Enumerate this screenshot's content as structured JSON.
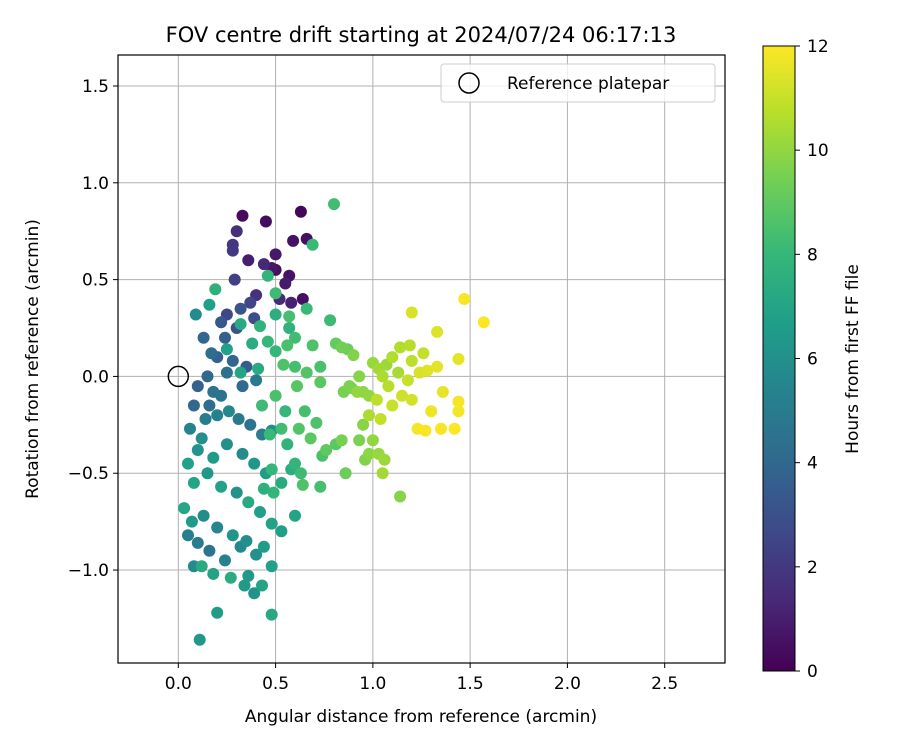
{
  "chart_data": {
    "type": "scatter",
    "title": "FOV centre drift starting at 2024/07/24 06:17:13",
    "xlabel": "Angular distance from reference (arcmin)",
    "ylabel": "Rotation from reference (arcmin)",
    "xlim": [
      -0.31,
      2.81
    ],
    "ylim": [
      -1.48,
      1.66
    ],
    "xticks": [
      0.0,
      0.5,
      1.0,
      1.5,
      2.0,
      2.5
    ],
    "xtick_labels": [
      "0.0",
      "0.5",
      "1.0",
      "1.5",
      "2.0",
      "2.5"
    ],
    "yticks": [
      -1.0,
      -0.5,
      0.0,
      0.5,
      1.0,
      1.5
    ],
    "ytick_labels": [
      "−1.0",
      "−0.5",
      "0.0",
      "0.5",
      "1.0",
      "1.5"
    ],
    "grid": true,
    "legend": {
      "label": "Reference platepar",
      "placement": "top-right"
    },
    "reference_point": {
      "x": 0.0,
      "y": 0.0
    },
    "colorbar": {
      "label": "Hours from first FF file",
      "range": [
        0,
        12
      ],
      "ticks": [
        0,
        2,
        4,
        6,
        8,
        10,
        12
      ],
      "tick_labels": [
        "0",
        "2",
        "4",
        "6",
        "8",
        "10",
        "12"
      ],
      "colormap": "viridis"
    },
    "colormap_stops": [
      "#440154",
      "#482878",
      "#3e4989",
      "#31688e",
      "#26828e",
      "#1f9e89",
      "#35b779",
      "#6ece58",
      "#b5de2b",
      "#fde725"
    ],
    "series": [
      {
        "points": [
          [
            0.33,
            0.83,
            0.3
          ],
          [
            0.45,
            0.8,
            0.4
          ],
          [
            0.63,
            0.85,
            0.2
          ],
          [
            0.66,
            0.71,
            0.5
          ],
          [
            0.59,
            0.7,
            0.6
          ],
          [
            0.5,
            0.63,
            0.8
          ],
          [
            0.3,
            0.75,
            1.6
          ],
          [
            0.28,
            0.68,
            1.9
          ],
          [
            0.28,
            0.65,
            2.0
          ],
          [
            0.36,
            0.6,
            1.0
          ],
          [
            0.44,
            0.58,
            1.3
          ],
          [
            0.48,
            0.56,
            0.7
          ],
          [
            0.5,
            0.55,
            0.4
          ],
          [
            0.57,
            0.52,
            0.6
          ],
          [
            0.55,
            0.48,
            0.9
          ],
          [
            0.64,
            0.4,
            0.5
          ],
          [
            0.58,
            0.38,
            1.1
          ],
          [
            0.52,
            0.4,
            1.4
          ],
          [
            0.4,
            0.42,
            1.7
          ],
          [
            0.29,
            0.5,
            2.3
          ],
          [
            0.37,
            0.38,
            2.5
          ],
          [
            0.32,
            0.35,
            3.1
          ],
          [
            0.39,
            0.3,
            2.8
          ],
          [
            0.25,
            0.32,
            2.6
          ],
          [
            0.22,
            0.28,
            3.3
          ],
          [
            0.24,
            0.2,
            3.6
          ],
          [
            0.3,
            0.25,
            3.0
          ],
          [
            0.13,
            0.2,
            3.9
          ],
          [
            0.17,
            0.12,
            4.2
          ],
          [
            0.2,
            0.1,
            3.7
          ],
          [
            0.28,
            0.08,
            3.9
          ],
          [
            0.25,
            0.02,
            4.4
          ],
          [
            0.35,
            0.05,
            3.5
          ],
          [
            0.4,
            -0.02,
            4.8
          ],
          [
            0.33,
            -0.05,
            4.1
          ],
          [
            0.22,
            -0.1,
            4.6
          ],
          [
            0.16,
            -0.15,
            4.3
          ],
          [
            0.14,
            -0.22,
            5.0
          ],
          [
            0.2,
            -0.2,
            5.3
          ],
          [
            0.26,
            -0.18,
            5.6
          ],
          [
            0.31,
            -0.22,
            4.9
          ],
          [
            0.37,
            -0.25,
            4.5
          ],
          [
            0.43,
            -0.3,
            5.1
          ],
          [
            0.48,
            -0.28,
            5.8
          ],
          [
            0.06,
            -0.27,
            5.4
          ],
          [
            0.12,
            -0.32,
            5.9
          ],
          [
            0.1,
            -0.38,
            6.2
          ],
          [
            0.18,
            -0.42,
            6.5
          ],
          [
            0.25,
            -0.35,
            6.0
          ],
          [
            0.33,
            -0.4,
            5.7
          ],
          [
            0.39,
            -0.45,
            6.3
          ],
          [
            0.45,
            -0.5,
            6.6
          ],
          [
            0.05,
            -0.45,
            6.8
          ],
          [
            0.08,
            -0.55,
            7.0
          ],
          [
            0.15,
            -0.5,
            6.4
          ],
          [
            0.22,
            -0.57,
            6.9
          ],
          [
            0.3,
            -0.6,
            6.1
          ],
          [
            0.36,
            -0.65,
            7.2
          ],
          [
            0.42,
            -0.7,
            6.7
          ],
          [
            0.03,
            -0.68,
            7.1
          ],
          [
            0.07,
            -0.75,
            6.5
          ],
          [
            0.13,
            -0.72,
            5.8
          ],
          [
            0.2,
            -0.78,
            5.5
          ],
          [
            0.28,
            -0.82,
            6.2
          ],
          [
            0.35,
            -0.85,
            5.9
          ],
          [
            0.44,
            -0.88,
            6.6
          ],
          [
            0.05,
            -0.82,
            5.2
          ],
          [
            0.1,
            -0.86,
            5.0
          ],
          [
            0.16,
            -0.9,
            4.7
          ],
          [
            0.24,
            -0.95,
            5.3
          ],
          [
            0.32,
            -0.88,
            5.6
          ],
          [
            0.4,
            -0.92,
            6.0
          ],
          [
            0.48,
            -0.98,
            6.8
          ],
          [
            0.12,
            -0.98,
            7.3
          ],
          [
            0.18,
            -1.02,
            6.9
          ],
          [
            0.27,
            -1.04,
            7.4
          ],
          [
            0.36,
            -1.03,
            6.4
          ],
          [
            0.43,
            -1.08,
            7.0
          ],
          [
            0.34,
            -1.08,
            6.5
          ],
          [
            0.08,
            -0.98,
            5.7
          ],
          [
            0.2,
            -1.22,
            6.6
          ],
          [
            0.48,
            -1.23,
            7.2
          ],
          [
            0.11,
            -1.36,
            6.3
          ],
          [
            0.39,
            -1.12,
            6.1
          ],
          [
            0.08,
            -0.15,
            4.0
          ],
          [
            0.1,
            -0.05,
            3.8
          ],
          [
            0.15,
            0.0,
            4.0
          ],
          [
            0.18,
            -0.08,
            4.5
          ],
          [
            0.09,
            0.32,
            5.8
          ],
          [
            0.16,
            0.37,
            6.7
          ],
          [
            0.19,
            0.45,
            7.6
          ],
          [
            0.32,
            0.27,
            7.2
          ],
          [
            0.42,
            0.26,
            7.8
          ],
          [
            0.46,
            0.18,
            8.0
          ],
          [
            0.5,
            0.32,
            7.5
          ],
          [
            0.5,
            0.43,
            8.2
          ],
          [
            0.46,
            0.52,
            7.9
          ],
          [
            0.57,
            0.31,
            8.4
          ],
          [
            0.66,
            0.35,
            8.1
          ],
          [
            0.57,
            0.25,
            7.7
          ],
          [
            0.6,
            0.2,
            8.3
          ],
          [
            0.56,
            0.16,
            8.5
          ],
          [
            0.5,
            0.13,
            8.0
          ],
          [
            0.69,
            0.16,
            8.6
          ],
          [
            0.78,
            0.29,
            8.2
          ],
          [
            0.8,
            0.89,
            8.3
          ],
          [
            0.69,
            0.68,
            8.1
          ],
          [
            0.38,
            0.17,
            7.4
          ],
          [
            0.25,
            0.14,
            6.8
          ],
          [
            0.32,
            0.02,
            7.0
          ],
          [
            0.41,
            0.04,
            7.3
          ],
          [
            0.54,
            0.06,
            8.6
          ],
          [
            0.6,
            0.05,
            8.4
          ],
          [
            0.66,
            0.02,
            8.7
          ],
          [
            0.73,
            0.05,
            8.5
          ],
          [
            0.73,
            -0.03,
            8.9
          ],
          [
            0.61,
            -0.05,
            8.8
          ],
          [
            0.5,
            -0.1,
            8.5
          ],
          [
            0.43,
            -0.15,
            8.2
          ],
          [
            0.55,
            -0.18,
            8.0
          ],
          [
            0.65,
            -0.18,
            8.4
          ],
          [
            0.71,
            -0.24,
            8.6
          ],
          [
            0.62,
            -0.27,
            8.7
          ],
          [
            0.53,
            -0.27,
            8.3
          ],
          [
            0.47,
            -0.3,
            8.1
          ],
          [
            0.56,
            -0.35,
            7.8
          ],
          [
            0.68,
            -0.32,
            8.9
          ],
          [
            0.76,
            -0.38,
            9.0
          ],
          [
            0.74,
            -0.41,
            8.5
          ],
          [
            0.6,
            -0.45,
            7.9
          ],
          [
            0.48,
            -0.48,
            8.0
          ],
          [
            0.58,
            -0.48,
            7.5
          ],
          [
            0.63,
            -0.5,
            8.2
          ],
          [
            0.64,
            -0.56,
            8.6
          ],
          [
            0.53,
            -0.55,
            7.3
          ],
          [
            0.44,
            -0.58,
            7.6
          ],
          [
            0.49,
            -0.6,
            7.9
          ],
          [
            0.73,
            -0.57,
            8.4
          ],
          [
            0.81,
            -0.35,
            8.9
          ],
          [
            0.84,
            -0.33,
            9.5
          ],
          [
            0.86,
            -0.5,
            9.3
          ],
          [
            0.6,
            -0.72,
            7.0
          ],
          [
            0.53,
            -0.8,
            6.7
          ],
          [
            0.48,
            -0.76,
            6.9
          ],
          [
            0.84,
            0.15,
            9.4
          ],
          [
            0.9,
            0.11,
            9.7
          ],
          [
            0.93,
            0.0,
            9.8
          ],
          [
            0.89,
            -0.06,
            9.5
          ],
          [
            0.95,
            -0.08,
            9.9
          ],
          [
            0.98,
            -0.1,
            10.0
          ],
          [
            1.0,
            0.07,
            10.1
          ],
          [
            1.03,
            0.04,
            10.3
          ],
          [
            1.05,
            0.0,
            10.5
          ],
          [
            1.07,
            0.06,
            10.2
          ],
          [
            1.1,
            0.1,
            10.6
          ],
          [
            1.13,
            0.02,
            10.4
          ],
          [
            1.08,
            -0.05,
            10.7
          ],
          [
            1.02,
            -0.12,
            10.8
          ],
          [
            0.98,
            -0.2,
            10.5
          ],
          [
            1.04,
            -0.22,
            10.9
          ],
          [
            1.1,
            -0.15,
            11.0
          ],
          [
            1.15,
            -0.1,
            11.1
          ],
          [
            1.2,
            -0.12,
            11.2
          ],
          [
            1.18,
            -0.02,
            11.0
          ],
          [
            1.24,
            0.02,
            11.3
          ],
          [
            1.28,
            0.03,
            11.4
          ],
          [
            1.2,
            0.08,
            10.8
          ],
          [
            1.14,
            0.15,
            10.6
          ],
          [
            1.19,
            0.16,
            10.7
          ],
          [
            1.26,
            0.12,
            10.9
          ],
          [
            1.33,
            0.05,
            11.5
          ],
          [
            1.36,
            -0.08,
            11.6
          ],
          [
            1.3,
            -0.18,
            11.7
          ],
          [
            1.23,
            -0.27,
            11.8
          ],
          [
            1.27,
            -0.28,
            11.9
          ],
          [
            1.35,
            -0.27,
            11.9
          ],
          [
            1.42,
            -0.27,
            12.0
          ],
          [
            1.44,
            -0.13,
            11.9
          ],
          [
            1.44,
            -0.18,
            11.8
          ],
          [
            1.44,
            0.09,
            11.6
          ],
          [
            1.47,
            0.4,
            11.9
          ],
          [
            1.57,
            0.28,
            12.0
          ],
          [
            1.33,
            0.23,
            11.4
          ],
          [
            1.2,
            0.33,
            11.3
          ],
          [
            0.95,
            -0.25,
            9.8
          ],
          [
            0.93,
            -0.33,
            9.6
          ],
          [
            0.98,
            -0.4,
            9.9
          ],
          [
            1.0,
            -0.33,
            10.0
          ],
          [
            0.96,
            -0.43,
            9.7
          ],
          [
            1.03,
            -0.4,
            10.1
          ],
          [
            1.06,
            -0.43,
            10.2
          ],
          [
            1.05,
            -0.5,
            10.3
          ],
          [
            1.14,
            -0.62,
            9.8
          ],
          [
            0.88,
            -0.05,
            9.6
          ],
          [
            0.85,
            -0.08,
            9.5
          ],
          [
            0.81,
            0.17,
            9.1
          ],
          [
            0.87,
            0.14,
            9.3
          ],
          [
            0.92,
            -0.08,
            10.0
          ]
        ]
      }
    ]
  }
}
